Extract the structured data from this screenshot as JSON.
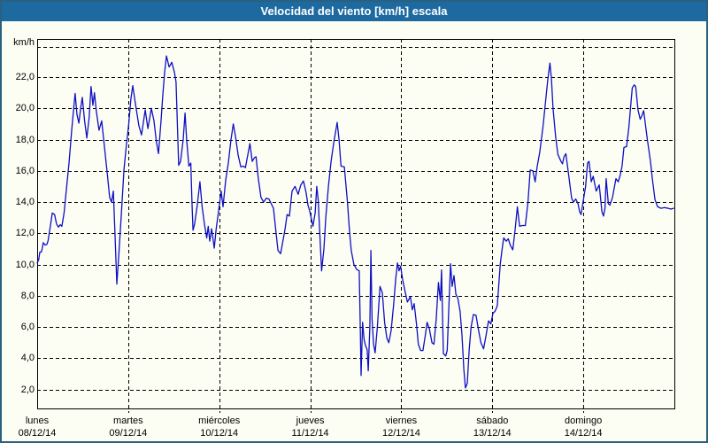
{
  "window": {
    "title": "Velocidad del viento [km/h] escala"
  },
  "chart": {
    "unit_label": "km/h"
  },
  "colors": {
    "titlebar_bg": "#1d6aa1",
    "titlebar_text": "#ffffff",
    "window_bg": "#fcfdf3",
    "window_border": "#2a6080",
    "grid": "#000000",
    "line": "#0f0fc4"
  },
  "chart_data": {
    "type": "line",
    "title": "Velocidad del viento [km/h] escala",
    "ylabel": "km/h",
    "xlabel": "",
    "x_unit": "hours since 08/12/14 00:00",
    "ylim": [
      0.79,
      24.44
    ],
    "xlim": [
      0,
      168
    ],
    "grid": "dashed",
    "legend": "none",
    "y_gridlines": [
      2,
      4,
      6,
      8,
      10,
      12,
      14,
      16,
      18,
      20,
      22
    ],
    "y_top_dashed_line": 23.92,
    "y_tick_labels": [
      "22,0",
      "20,0",
      "18,0",
      "16,0",
      "14,0",
      "12,0",
      "10,0",
      "8,0",
      "6,0",
      "4,0",
      "2,0"
    ],
    "y_tick_values": [
      22,
      20,
      18,
      16,
      14,
      12,
      10,
      8,
      6,
      4,
      2
    ],
    "x_day_gridlines_hours": [
      24,
      48,
      72,
      96,
      120,
      144
    ],
    "days": [
      {
        "name": "lunes",
        "date": "08/12/14",
        "t": 0
      },
      {
        "name": "martes",
        "date": "09/12/14",
        "t": 24
      },
      {
        "name": "miércoles",
        "date": "10/12/14",
        "t": 48
      },
      {
        "name": "jueves",
        "date": "11/12/14",
        "t": 72
      },
      {
        "name": "viernes",
        "date": "12/12/14",
        "t": 96
      },
      {
        "name": "sábado",
        "date": "13/12/14",
        "t": 120
      },
      {
        "name": "domingo",
        "date": "14/12/14",
        "t": 144
      }
    ],
    "series": [
      {
        "name": "velocidad del viento (km/h)",
        "points": [
          [
            0,
            10.1
          ],
          [
            0.4,
            10.3
          ],
          [
            0.7,
            10.8
          ],
          [
            1.1,
            10.8
          ],
          [
            1.3,
            11.0
          ],
          [
            1.6,
            11.4
          ],
          [
            2.1,
            11.25
          ],
          [
            2.6,
            11.3
          ],
          [
            2.9,
            11.55
          ],
          [
            3.5,
            12.5
          ],
          [
            4.0,
            13.3
          ],
          [
            4.6,
            13.2
          ],
          [
            5.1,
            12.6
          ],
          [
            5.6,
            12.4
          ],
          [
            6.1,
            12.55
          ],
          [
            6.5,
            12.45
          ],
          [
            7.1,
            13.3
          ],
          [
            7.7,
            14.8
          ],
          [
            8.4,
            16.5
          ],
          [
            9.1,
            18.6
          ],
          [
            9.7,
            20.2
          ],
          [
            10.0,
            20.95
          ],
          [
            10.5,
            19.6
          ],
          [
            11.0,
            19.05
          ],
          [
            11.4,
            19.9
          ],
          [
            11.9,
            20.7
          ],
          [
            12.5,
            19.2
          ],
          [
            13.1,
            18.1
          ],
          [
            13.7,
            19.4
          ],
          [
            14.2,
            21.4
          ],
          [
            14.7,
            20.2
          ],
          [
            15.1,
            21.0
          ],
          [
            15.6,
            19.8
          ],
          [
            16.3,
            18.6
          ],
          [
            17.0,
            19.2
          ],
          [
            17.7,
            17.6
          ],
          [
            18.4,
            16.0
          ],
          [
            19.1,
            14.3
          ],
          [
            19.6,
            14.0
          ],
          [
            20.1,
            14.7
          ],
          [
            20.5,
            12.0
          ],
          [
            21.0,
            8.75
          ],
          [
            21.5,
            10.5
          ],
          [
            22.2,
            13.2
          ],
          [
            22.9,
            16.1
          ],
          [
            23.6,
            17.8
          ],
          [
            24.1,
            18.9
          ],
          [
            24.7,
            20.6
          ],
          [
            25.2,
            21.45
          ],
          [
            25.9,
            20.3
          ],
          [
            26.8,
            18.9
          ],
          [
            27.5,
            18.3
          ],
          [
            28.5,
            19.9
          ],
          [
            29.2,
            18.7
          ],
          [
            30.1,
            20.0
          ],
          [
            30.8,
            19.2
          ],
          [
            31.4,
            17.9
          ],
          [
            32.0,
            17.1
          ],
          [
            32.7,
            19.3
          ],
          [
            33.1,
            20.8
          ],
          [
            33.6,
            22.3
          ],
          [
            34.1,
            23.35
          ],
          [
            34.8,
            22.65
          ],
          [
            35.5,
            22.95
          ],
          [
            36.2,
            22.3
          ],
          [
            36.6,
            21.7
          ],
          [
            37.3,
            16.35
          ],
          [
            37.8,
            16.6
          ],
          [
            38.5,
            18.0
          ],
          [
            39.0,
            19.7
          ],
          [
            39.4,
            18.0
          ],
          [
            40.0,
            16.3
          ],
          [
            40.5,
            16.5
          ],
          [
            40.8,
            14.0
          ],
          [
            41.1,
            12.2
          ],
          [
            41.5,
            12.6
          ],
          [
            42.2,
            13.8
          ],
          [
            42.9,
            15.3
          ],
          [
            43.5,
            13.7
          ],
          [
            44.1,
            12.6
          ],
          [
            44.7,
            11.7
          ],
          [
            45.1,
            12.45
          ],
          [
            45.5,
            11.5
          ],
          [
            46.0,
            12.3
          ],
          [
            46.7,
            11.05
          ],
          [
            47.2,
            12.3
          ],
          [
            47.8,
            13.4
          ],
          [
            48.5,
            14.7
          ],
          [
            49.0,
            13.7
          ],
          [
            49.7,
            15.4
          ],
          [
            50.4,
            16.5
          ],
          [
            51.1,
            18.0
          ],
          [
            51.7,
            19.0
          ],
          [
            52.3,
            18.2
          ],
          [
            53.0,
            17.0
          ],
          [
            53.7,
            16.25
          ],
          [
            54.4,
            16.3
          ],
          [
            54.9,
            16.2
          ],
          [
            55.5,
            17.0
          ],
          [
            56.1,
            17.75
          ],
          [
            56.7,
            16.6
          ],
          [
            57.3,
            16.85
          ],
          [
            57.7,
            16.9
          ],
          [
            58.3,
            15.5
          ],
          [
            59.0,
            14.3
          ],
          [
            59.7,
            14.0
          ],
          [
            60.4,
            14.25
          ],
          [
            61.1,
            14.2
          ],
          [
            62.3,
            13.6
          ],
          [
            63.0,
            12.0
          ],
          [
            63.5,
            10.9
          ],
          [
            64.2,
            10.7
          ],
          [
            65.3,
            12.2
          ],
          [
            65.9,
            13.2
          ],
          [
            66.5,
            13.1
          ],
          [
            67.2,
            14.7
          ],
          [
            68.0,
            15.0
          ],
          [
            68.8,
            14.5
          ],
          [
            69.5,
            15.1
          ],
          [
            70.2,
            15.35
          ],
          [
            70.9,
            14.6
          ],
          [
            71.4,
            13.8
          ],
          [
            71.9,
            13.4
          ],
          [
            72.7,
            12.45
          ],
          [
            73.3,
            13.3
          ],
          [
            73.7,
            15.0
          ],
          [
            74.1,
            14.1
          ],
          [
            74.4,
            12.5
          ],
          [
            75.0,
            9.6
          ],
          [
            75.6,
            11.0
          ],
          [
            76.1,
            13.0
          ],
          [
            76.8,
            15.0
          ],
          [
            77.5,
            16.6
          ],
          [
            78.2,
            17.8
          ],
          [
            79.1,
            19.1
          ],
          [
            79.6,
            18.0
          ],
          [
            80.1,
            16.3
          ],
          [
            81.0,
            16.25
          ],
          [
            81.8,
            14.0
          ],
          [
            82.4,
            12.0
          ],
          [
            82.8,
            10.9
          ],
          [
            83.5,
            10.0
          ],
          [
            84.2,
            9.7
          ],
          [
            84.9,
            9.6
          ],
          [
            85.2,
            6.0
          ],
          [
            85.4,
            2.9
          ],
          [
            85.8,
            6.3
          ],
          [
            86.2,
            5.2
          ],
          [
            86.6,
            4.8
          ],
          [
            87.0,
            4.55
          ],
          [
            87.3,
            3.2
          ],
          [
            87.7,
            6.0
          ],
          [
            88.0,
            10.9
          ],
          [
            88.3,
            6.5
          ],
          [
            88.7,
            4.9
          ],
          [
            89.1,
            4.35
          ],
          [
            89.7,
            6.0
          ],
          [
            90.4,
            8.6
          ],
          [
            91.0,
            8.2
          ],
          [
            91.6,
            6.3
          ],
          [
            92.2,
            5.3
          ],
          [
            92.7,
            5.0
          ],
          [
            93.3,
            5.75
          ],
          [
            94.0,
            7.5
          ],
          [
            94.5,
            9.0
          ],
          [
            95.0,
            10.1
          ],
          [
            95.4,
            9.6
          ],
          [
            95.8,
            9.9
          ],
          [
            96.4,
            9.0
          ],
          [
            96.8,
            8.5
          ],
          [
            97.6,
            7.6
          ],
          [
            98.4,
            7.95
          ],
          [
            98.9,
            7.1
          ],
          [
            99.4,
            7.5
          ],
          [
            100.0,
            6.2
          ],
          [
            100.5,
            4.9
          ],
          [
            101.1,
            4.5
          ],
          [
            101.7,
            4.5
          ],
          [
            102.3,
            5.4
          ],
          [
            102.8,
            6.3
          ],
          [
            103.4,
            5.9
          ],
          [
            104.1,
            5.0
          ],
          [
            104.6,
            4.9
          ],
          [
            105.2,
            6.5
          ],
          [
            105.8,
            8.85
          ],
          [
            106.3,
            7.7
          ],
          [
            106.6,
            9.65
          ],
          [
            107.1,
            4.3
          ],
          [
            107.7,
            4.15
          ],
          [
            108.1,
            4.5
          ],
          [
            108.5,
            7.0
          ],
          [
            109.0,
            10.05
          ],
          [
            109.4,
            8.6
          ],
          [
            109.9,
            9.3
          ],
          [
            110.4,
            8.1
          ],
          [
            110.9,
            7.85
          ],
          [
            111.5,
            7.0
          ],
          [
            112.0,
            5.5
          ],
          [
            112.5,
            3.3
          ],
          [
            112.9,
            2.1
          ],
          [
            113.4,
            2.4
          ],
          [
            113.9,
            4.5
          ],
          [
            114.4,
            6.0
          ],
          [
            115.0,
            6.8
          ],
          [
            115.7,
            6.75
          ],
          [
            116.3,
            5.9
          ],
          [
            117.0,
            5.0
          ],
          [
            117.7,
            4.6
          ],
          [
            118.3,
            5.4
          ],
          [
            119.0,
            6.4
          ],
          [
            119.6,
            6.2
          ],
          [
            120.2,
            6.9
          ],
          [
            120.7,
            7.0
          ],
          [
            121.3,
            7.35
          ],
          [
            122.1,
            10.05
          ],
          [
            122.6,
            11.0
          ],
          [
            123.0,
            11.7
          ],
          [
            123.7,
            11.5
          ],
          [
            124.2,
            11.65
          ],
          [
            124.8,
            11.2
          ],
          [
            125.4,
            10.95
          ],
          [
            126.0,
            12.2
          ],
          [
            126.6,
            13.7
          ],
          [
            127.2,
            12.45
          ],
          [
            127.9,
            12.5
          ],
          [
            128.7,
            12.5
          ],
          [
            129.4,
            14.0
          ],
          [
            130.0,
            16.05
          ],
          [
            130.7,
            16.0
          ],
          [
            131.3,
            15.3
          ],
          [
            131.8,
            16.25
          ],
          [
            132.5,
            17.2
          ],
          [
            133.4,
            18.9
          ],
          [
            134.2,
            20.8
          ],
          [
            134.6,
            21.8
          ],
          [
            135.2,
            22.9
          ],
          [
            135.6,
            21.9
          ],
          [
            136.0,
            20.0
          ],
          [
            136.7,
            18.15
          ],
          [
            137.3,
            17.05
          ],
          [
            138.1,
            16.6
          ],
          [
            138.5,
            16.45
          ],
          [
            138.9,
            16.9
          ],
          [
            139.4,
            17.1
          ],
          [
            140.1,
            15.8
          ],
          [
            140.9,
            14.25
          ],
          [
            141.4,
            14.0
          ],
          [
            142.0,
            14.2
          ],
          [
            142.6,
            13.9
          ],
          [
            143.0,
            13.4
          ],
          [
            143.4,
            13.2
          ],
          [
            144.0,
            14.1
          ],
          [
            144.6,
            15.0
          ],
          [
            145.1,
            16.5
          ],
          [
            145.5,
            16.6
          ],
          [
            146.1,
            15.3
          ],
          [
            146.6,
            15.65
          ],
          [
            147.4,
            14.7
          ],
          [
            148.2,
            15.1
          ],
          [
            148.9,
            13.4
          ],
          [
            149.3,
            13.1
          ],
          [
            149.7,
            13.6
          ],
          [
            150.0,
            15.5
          ],
          [
            150.6,
            13.9
          ],
          [
            151.0,
            13.8
          ],
          [
            151.7,
            14.3
          ],
          [
            152.6,
            15.5
          ],
          [
            153.2,
            15.3
          ],
          [
            153.7,
            15.7
          ],
          [
            154.2,
            16.3
          ],
          [
            154.7,
            17.5
          ],
          [
            155.4,
            17.55
          ],
          [
            156.0,
            18.8
          ],
          [
            156.5,
            20.2
          ],
          [
            156.9,
            21.3
          ],
          [
            157.4,
            21.5
          ],
          [
            157.8,
            21.4
          ],
          [
            158.4,
            19.9
          ],
          [
            159.0,
            19.3
          ],
          [
            159.4,
            19.5
          ],
          [
            159.9,
            19.85
          ],
          [
            160.5,
            18.7
          ],
          [
            160.9,
            17.95
          ],
          [
            161.7,
            16.6
          ],
          [
            162.2,
            15.5
          ],
          [
            162.9,
            14.15
          ],
          [
            163.6,
            13.7
          ],
          [
            164.5,
            13.6
          ],
          [
            165.4,
            13.65
          ],
          [
            166.4,
            13.6
          ],
          [
            167.1,
            13.55
          ],
          [
            167.8,
            13.6
          ]
        ]
      }
    ]
  }
}
